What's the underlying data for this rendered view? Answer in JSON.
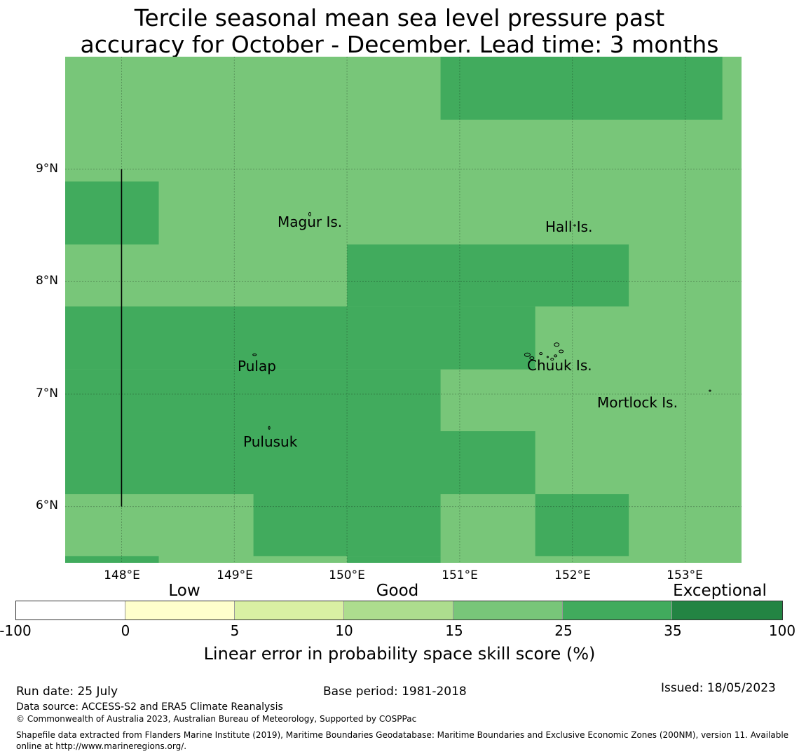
{
  "title": {
    "line1": "Tercile seasonal mean sea level pressure past",
    "line2": "accuracy for October - December. Lead time: 3 months"
  },
  "colors": {
    "skill_15_25": "#78c679",
    "skill_25_35": "#41ab5d",
    "skill_35_100": "#238443",
    "coast": "#000000"
  },
  "map": {
    "lon_range": [
      147.5,
      153.5
    ],
    "lat_range": [
      5.5,
      10.0
    ],
    "lat_ticks": [
      "9°N",
      "8°N",
      "7°N",
      "6°N"
    ],
    "lon_ticks": [
      "148°E",
      "149°E",
      "150°E",
      "151°E",
      "152°E",
      "153°E"
    ],
    "cells": [
      {
        "lon": [
          150.83,
          153.33
        ],
        "lat": [
          9.44,
          10.0
        ],
        "class": "25-35"
      },
      {
        "lon": [
          147.5,
          148.33
        ],
        "lat": [
          8.33,
          8.89
        ],
        "class": "25-35"
      },
      {
        "lon": [
          150.0,
          152.5
        ],
        "lat": [
          7.78,
          8.33
        ],
        "class": "25-35"
      },
      {
        "lon": [
          147.5,
          150.0
        ],
        "lat": [
          7.22,
          7.78
        ],
        "class": "25-35"
      },
      {
        "lon": [
          150.0,
          151.67
        ],
        "lat": [
          7.22,
          7.78
        ],
        "class": "25-35"
      },
      {
        "lon": [
          147.5,
          150.83
        ],
        "lat": [
          6.67,
          7.22
        ],
        "class": "25-35"
      },
      {
        "lon": [
          147.5,
          151.67
        ],
        "lat": [
          6.11,
          6.67
        ],
        "class": "25-35"
      },
      {
        "lon": [
          149.17,
          150.83
        ],
        "lat": [
          5.56,
          6.11
        ],
        "class": "25-35"
      },
      {
        "lon": [
          151.67,
          152.5
        ],
        "lat": [
          5.56,
          6.11
        ],
        "class": "25-35"
      },
      {
        "lon": [
          150.0,
          150.83
        ],
        "lat": [
          5.5,
          5.56
        ],
        "class": "25-35"
      },
      {
        "lon": [
          147.5,
          148.33
        ],
        "lat": [
          5.5,
          5.56
        ],
        "class": "25-35"
      }
    ],
    "boundary_line": {
      "lon": 148.0,
      "lat": [
        6.0,
        9.0
      ]
    },
    "places": [
      {
        "name": "Magur Is.",
        "lon": 149.7,
        "lat": 8.52
      },
      {
        "name": "Hall Is.",
        "lon": 151.97,
        "lat": 8.47
      },
      {
        "name": "Pulap",
        "lon": 149.2,
        "lat": 7.24
      },
      {
        "name": "Chuuk Is.",
        "lon": 151.9,
        "lat": 7.25
      },
      {
        "name": "Mortlock Is.",
        "lon": 152.6,
        "lat": 6.92
      },
      {
        "name": "Pulusuk",
        "lon": 149.33,
        "lat": 6.58
      }
    ]
  },
  "colorbar": {
    "categories": [
      "Low",
      "Good",
      "Exceptional"
    ],
    "ticks": [
      "-100",
      "0",
      "5",
      "10",
      "15",
      "25",
      "35",
      "100"
    ],
    "segment_colors": [
      "#ffffff",
      "#ffffcc",
      "#d9f0a3",
      "#addd8e",
      "#78c679",
      "#41ab5d",
      "#238443"
    ],
    "label": "Linear error in probability space skill score (%)"
  },
  "footer": {
    "run_date": "Run date: 25 July",
    "base_period": "Base period: 1981-2018",
    "issued": "Issued: 18/05/2023",
    "data_source": "Data source: ACCESS-S2 and ERA5 Climate Reanalysis",
    "copyright": "© Commonwealth of Australia 2023, Australian Bureau of Meteorology, Supported by COSPPac",
    "shapefile": "Shapefile data extracted from Flanders Marine Institute (2019), Maritime Boundaries Geodatabase: Maritime Boundaries and Exclusive Economic Zones (200NM), version 11. Available online at http://www.marineregions.org/."
  }
}
